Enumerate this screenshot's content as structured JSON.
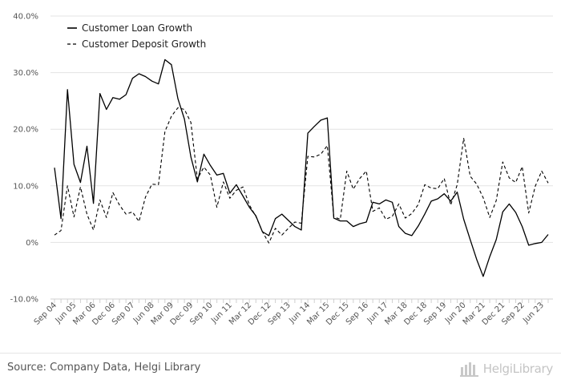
{
  "footer": {
    "source": "Source: Company Data, Helgi Library",
    "brand": "HelgiLibrary",
    "brand_icon": "helgi-library-logo-icon"
  },
  "chart_data": {
    "type": "line",
    "title": "",
    "xlabel": "",
    "ylabel": "",
    "ylim": [
      -10,
      40
    ],
    "yticks": [
      -10,
      0,
      10,
      20,
      30,
      40
    ],
    "ytick_labels": [
      "-10.0%",
      "0%",
      "10.0%",
      "20.0%",
      "30.0%",
      "40.0%"
    ],
    "x_start_period": "Sep 04",
    "x_label_step": 3,
    "x_tick_labels": [
      "Sep 04",
      "Jun 05",
      "Mar 06",
      "Dec 06",
      "Sep 07",
      "Jun 08",
      "Mar 09",
      "Dec 09",
      "Sep 10",
      "Jun 11",
      "Mar 12",
      "Dec 12",
      "Sep 13",
      "Jun 14",
      "Mar 15",
      "Dec 15",
      "Sep 16",
      "Jun 17",
      "Mar 18",
      "Dec 18",
      "Sep 19",
      "Jun 20",
      "Mar 21",
      "Dec 21",
      "Sep 22",
      "Jun 23"
    ],
    "grid": "horizontal",
    "legend_position": "top-left",
    "colors": {
      "loan": "#000000",
      "deposit": "#000000",
      "grid": "#e3e3e3",
      "axis": "#d0d0d0"
    },
    "series": [
      {
        "name": "Customer Loan Growth",
        "style": "solid",
        "values": [
          13.2,
          4.2,
          27.0,
          13.8,
          10.6,
          17.0,
          6.9,
          26.3,
          23.5,
          25.6,
          25.3,
          26.1,
          29.0,
          29.8,
          29.3,
          28.5,
          28.0,
          32.3,
          31.4,
          25.4,
          21.8,
          15.1,
          10.7,
          15.6,
          13.6,
          11.9,
          12.2,
          8.7,
          10.2,
          8.2,
          6.2,
          4.7,
          1.9,
          1.2,
          4.2,
          5.0,
          3.9,
          2.8,
          2.2,
          19.3,
          20.5,
          21.6,
          22.0,
          4.3,
          3.8,
          3.8,
          2.8,
          3.3,
          3.6,
          7.1,
          6.8,
          7.5,
          7.1,
          2.8,
          1.6,
          1.2,
          2.9,
          5.0,
          7.3,
          7.7,
          8.6,
          7.3,
          8.9,
          4.1,
          0.5,
          -3.0,
          -6.0,
          -2.5,
          0.5,
          5.4,
          6.8,
          5.3,
          2.8,
          -0.5,
          -0.2,
          0.0,
          1.4
        ]
      },
      {
        "name": "Customer Deposit Growth",
        "style": "dashed",
        "values": [
          1.3,
          2.1,
          10.0,
          4.5,
          9.8,
          5.0,
          2.2,
          7.5,
          4.4,
          8.8,
          6.6,
          5.0,
          5.4,
          3.7,
          8.0,
          10.3,
          10.2,
          19.6,
          22.3,
          23.8,
          23.5,
          21.2,
          11.2,
          13.3,
          11.9,
          6.2,
          10.7,
          7.8,
          9.2,
          9.8,
          6.6,
          4.6,
          1.9,
          -0.1,
          2.5,
          1.3,
          2.5,
          3.6,
          3.4,
          15.2,
          15.1,
          15.6,
          17.1,
          4.5,
          4.1,
          12.6,
          9.4,
          11.3,
          12.6,
          5.5,
          6.1,
          4.1,
          4.6,
          6.8,
          4.3,
          5.1,
          6.7,
          10.2,
          9.6,
          9.5,
          11.3,
          6.6,
          10.2,
          18.4,
          11.7,
          10.3,
          7.9,
          4.4,
          7.4,
          14.2,
          11.4,
          10.6,
          13.4,
          5.2,
          9.9,
          12.6,
          10.5
        ]
      }
    ]
  }
}
